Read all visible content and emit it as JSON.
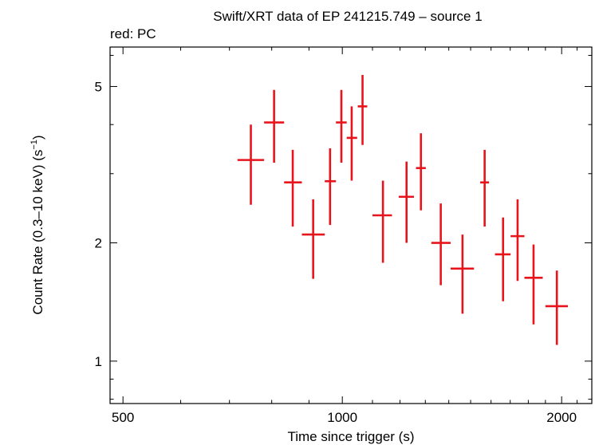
{
  "chart_data": {
    "type": "scatter",
    "title": "Swift/XRT data of EP 241215.749 – source 1",
    "subtitle": "red: PC",
    "xlabel": "Time since trigger (s)",
    "ylabel": "Count Rate (0.3–10 keV) (s",
    "ylabel_sup": "−1",
    "ylabel_tail": ")",
    "x_scale": "log",
    "y_scale": "log",
    "xlim": [
      480,
      2200
    ],
    "ylim": [
      0.78,
      6.3
    ],
    "x_ticks": [
      500,
      1000,
      2000
    ],
    "x_tick_labels": [
      "500",
      "1000",
      "2000"
    ],
    "y_ticks": [
      1,
      2,
      5
    ],
    "y_tick_labels": [
      "1",
      "2",
      "5"
    ],
    "grid": false,
    "color": "#e8141b",
    "series": [
      {
        "points": [
          {
            "x": 749,
            "xlo": 718,
            "xhi": 781,
            "y": 3.25,
            "ylo": 2.5,
            "yhi": 4.0
          },
          {
            "x": 806,
            "xlo": 781,
            "xhi": 832,
            "y": 4.05,
            "ylo": 3.2,
            "yhi": 4.9
          },
          {
            "x": 855,
            "xlo": 832,
            "xhi": 880,
            "y": 2.85,
            "ylo": 2.2,
            "yhi": 3.45
          },
          {
            "x": 912,
            "xlo": 880,
            "xhi": 946,
            "y": 2.1,
            "ylo": 1.62,
            "yhi": 2.58
          },
          {
            "x": 962,
            "xlo": 946,
            "xhi": 980,
            "y": 2.87,
            "ylo": 2.22,
            "yhi": 3.48
          },
          {
            "x": 997,
            "xlo": 980,
            "xhi": 1014,
            "y": 4.05,
            "ylo": 3.2,
            "yhi": 4.9
          },
          {
            "x": 1030,
            "xlo": 1014,
            "xhi": 1048,
            "y": 3.7,
            "ylo": 2.88,
            "yhi": 4.45
          },
          {
            "x": 1066,
            "xlo": 1050,
            "xhi": 1082,
            "y": 4.45,
            "ylo": 3.55,
            "yhi": 5.35
          },
          {
            "x": 1137,
            "xlo": 1100,
            "xhi": 1170,
            "y": 2.35,
            "ylo": 1.78,
            "yhi": 2.88
          },
          {
            "x": 1225,
            "xlo": 1195,
            "xhi": 1254,
            "y": 2.62,
            "ylo": 2.0,
            "yhi": 3.22
          },
          {
            "x": 1282,
            "xlo": 1262,
            "xhi": 1302,
            "y": 3.1,
            "ylo": 2.42,
            "yhi": 3.8
          },
          {
            "x": 1365,
            "xlo": 1325,
            "xhi": 1408,
            "y": 2.0,
            "ylo": 1.56,
            "yhi": 2.52
          },
          {
            "x": 1462,
            "xlo": 1408,
            "xhi": 1516,
            "y": 1.72,
            "ylo": 1.32,
            "yhi": 2.1
          },
          {
            "x": 1568,
            "xlo": 1546,
            "xhi": 1590,
            "y": 2.85,
            "ylo": 2.2,
            "yhi": 3.45
          },
          {
            "x": 1662,
            "xlo": 1620,
            "xhi": 1702,
            "y": 1.87,
            "ylo": 1.42,
            "yhi": 2.32
          },
          {
            "x": 1740,
            "xlo": 1702,
            "xhi": 1778,
            "y": 2.08,
            "ylo": 1.6,
            "yhi": 2.58
          },
          {
            "x": 1830,
            "xlo": 1778,
            "xhi": 1884,
            "y": 1.63,
            "ylo": 1.24,
            "yhi": 1.98
          },
          {
            "x": 1970,
            "xlo": 1900,
            "xhi": 2040,
            "y": 1.38,
            "ylo": 1.1,
            "yhi": 1.7
          }
        ]
      }
    ]
  }
}
